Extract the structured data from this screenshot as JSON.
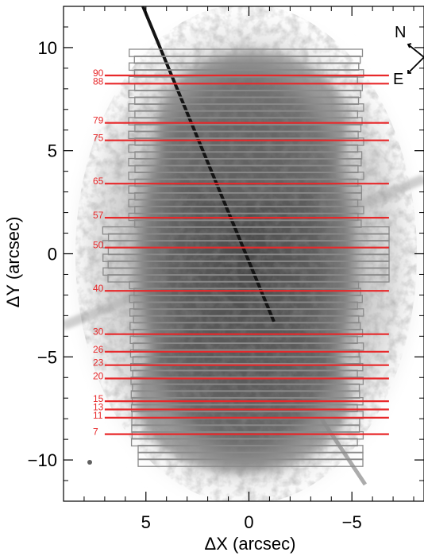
{
  "chart_data": {
    "type": "image",
    "xlabel": "ΔX (arcsec)",
    "ylabel": "ΔY (arcsec)",
    "xlim": [
      9,
      -8.5
    ],
    "ylim": [
      -12,
      12
    ],
    "x_ticks": [
      {
        "value": 5,
        "label": "5"
      },
      {
        "value": 0,
        "label": "0"
      },
      {
        "value": -5,
        "label": "−5"
      }
    ],
    "y_ticks": [
      {
        "value": 10,
        "label": "10"
      },
      {
        "value": 5,
        "label": "5"
      },
      {
        "value": 0,
        "label": "0"
      },
      {
        "value": -5,
        "label": "−5"
      },
      {
        "value": -10,
        "label": "−10"
      }
    ],
    "slit_x_range": [
      7,
      -6.8
    ],
    "slits": [
      {
        "label": "90",
        "y": 8.65
      },
      {
        "label": "88",
        "y": 8.25
      },
      {
        "label": "79",
        "y": 6.35
      },
      {
        "label": "75",
        "y": 5.5
      },
      {
        "label": "65",
        "y": 3.4
      },
      {
        "label": "57",
        "y": 1.75
      },
      {
        "label": "50",
        "y": 0.3
      },
      {
        "label": "40",
        "y": -1.8
      },
      {
        "label": "30",
        "y": -3.9
      },
      {
        "label": "26",
        "y": -4.75
      },
      {
        "label": "23",
        "y": -5.4
      },
      {
        "label": "20",
        "y": -6.05
      },
      {
        "label": "15",
        "y": -7.15
      },
      {
        "label": "13",
        "y": -7.55
      },
      {
        "label": "11",
        "y": -7.95
      },
      {
        "label": "7",
        "y": -8.75
      }
    ],
    "compass": {
      "north": "N",
      "east": "E"
    },
    "colors": {
      "slit": "#e8282a",
      "field_box": "#8a8a8a"
    }
  }
}
